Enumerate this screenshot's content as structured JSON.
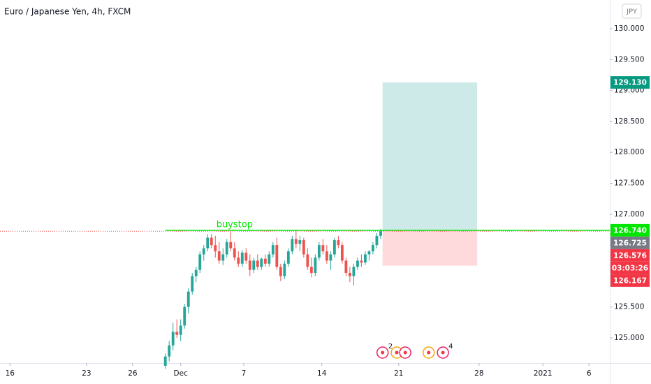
{
  "chart_data": {
    "type": "candlestick",
    "title": "Euro / Japanese Yen, 4h, FXCM",
    "currency_button": "JPY",
    "up_color": "#26a69a",
    "down_color": "#ef5350",
    "x": [
      0,
      1,
      2,
      3,
      4,
      5,
      6,
      7,
      8,
      9,
      10,
      11,
      12,
      13,
      14,
      15,
      16,
      17,
      18,
      19,
      20,
      21,
      22,
      23,
      24,
      25,
      26,
      27,
      28,
      29,
      30,
      31,
      32,
      33,
      34,
      35,
      36,
      37,
      38,
      39,
      40,
      41,
      42,
      43,
      44,
      45,
      46,
      47,
      48,
      49,
      50,
      51,
      52,
      53,
      54,
      55,
      56
    ],
    "open": [
      124.55,
      124.7,
      124.88,
      125.1,
      125.05,
      125.2,
      125.5,
      125.75,
      126.0,
      126.1,
      126.35,
      126.45,
      126.62,
      126.5,
      126.4,
      126.25,
      126.35,
      126.55,
      126.45,
      126.3,
      126.2,
      126.38,
      126.25,
      126.1,
      126.25,
      126.15,
      126.28,
      126.2,
      126.35,
      126.5,
      126.15,
      126.0,
      126.2,
      126.4,
      126.6,
      126.52,
      126.58,
      126.35,
      126.15,
      126.05,
      126.3,
      126.5,
      126.4,
      126.25,
      126.35,
      126.58,
      126.5,
      126.25,
      126.05,
      126.0,
      126.15,
      126.25,
      126.22,
      126.35,
      126.4,
      126.5,
      126.65
    ],
    "high": [
      124.75,
      124.95,
      125.25,
      125.3,
      125.3,
      125.55,
      125.8,
      126.05,
      126.15,
      126.4,
      126.5,
      126.68,
      126.68,
      126.65,
      126.55,
      126.45,
      126.6,
      126.72,
      126.55,
      126.4,
      126.42,
      126.45,
      126.35,
      126.3,
      126.35,
      126.3,
      126.35,
      126.4,
      126.55,
      126.62,
      126.2,
      126.25,
      126.45,
      126.65,
      126.75,
      126.65,
      126.62,
      126.45,
      126.3,
      126.35,
      126.55,
      126.6,
      126.5,
      126.4,
      126.62,
      126.65,
      126.55,
      126.3,
      126.15,
      126.2,
      126.3,
      126.35,
      126.4,
      126.42,
      126.55,
      126.7,
      126.76
    ],
    "low": [
      124.5,
      124.62,
      124.8,
      125.0,
      124.95,
      125.15,
      125.4,
      125.7,
      125.9,
      126.05,
      126.25,
      126.4,
      126.45,
      126.3,
      126.2,
      126.18,
      126.3,
      126.4,
      126.25,
      126.15,
      126.15,
      126.2,
      126.0,
      126.05,
      126.1,
      126.1,
      126.15,
      126.15,
      126.3,
      126.1,
      125.92,
      125.95,
      126.15,
      126.35,
      126.45,
      126.4,
      126.3,
      126.1,
      125.98,
      126.0,
      126.25,
      126.35,
      126.2,
      126.1,
      126.3,
      126.45,
      126.2,
      126.0,
      125.9,
      125.85,
      126.1,
      126.15,
      126.18,
      126.25,
      126.35,
      126.45,
      126.6
    ],
    "close": [
      124.7,
      124.88,
      125.1,
      125.05,
      125.2,
      125.5,
      125.75,
      126.0,
      126.1,
      126.35,
      126.45,
      126.62,
      126.5,
      126.4,
      126.25,
      126.35,
      126.55,
      126.45,
      126.3,
      126.2,
      126.38,
      126.25,
      126.1,
      126.25,
      126.15,
      126.28,
      126.2,
      126.35,
      126.5,
      126.15,
      126.0,
      126.2,
      126.4,
      126.6,
      126.52,
      126.58,
      126.35,
      126.15,
      126.05,
      126.3,
      126.5,
      126.4,
      126.25,
      126.35,
      126.58,
      126.5,
      126.25,
      126.05,
      126.0,
      126.15,
      126.25,
      126.22,
      126.35,
      126.4,
      126.5,
      126.65,
      126.725
    ],
    "xlim": [
      -43,
      115.6
    ],
    "xticks": [
      {
        "value": -40.4,
        "label": "16"
      },
      {
        "value": -20.5,
        "label": "23"
      },
      {
        "value": -8.5,
        "label": "26"
      },
      {
        "value": 4,
        "label": "Dec"
      },
      {
        "value": 20.4,
        "label": "7"
      },
      {
        "value": 40.7,
        "label": "14"
      },
      {
        "value": 60.7,
        "label": "21"
      },
      {
        "value": 81.6,
        "label": "28"
      },
      {
        "value": 98.2,
        "label": "2021"
      },
      {
        "value": 110.2,
        "label": "6"
      }
    ],
    "ylim": [
      124.594,
      130.463
    ],
    "yticks": [
      {
        "value": 125,
        "label": "125.000"
      },
      {
        "value": 125.5,
        "label": "125.500"
      },
      {
        "value": 126,
        "label": "126.000"
      },
      {
        "value": 126.5,
        "label": "126.500"
      },
      {
        "value": 127,
        "label": "127.000"
      },
      {
        "value": 127.5,
        "label": "127.500"
      },
      {
        "value": 128,
        "label": "128.000"
      },
      {
        "value": 128.5,
        "label": "128.500"
      },
      {
        "value": 129,
        "label": "129.000"
      },
      {
        "value": 129.5,
        "label": "129.500"
      },
      {
        "value": 130,
        "label": "130.000"
      }
    ],
    "position": {
      "x_start": 56.5,
      "x_end": 81.1,
      "entry": 126.74,
      "target": 129.13,
      "stop": 126.167,
      "profit_color": "#b2dfdb",
      "loss_color": "#ffcdd2"
    },
    "level": {
      "value": 126.74,
      "x_start": 0,
      "label": "buystop",
      "color": "#00e600"
    },
    "last_price": {
      "value": 126.725,
      "color": "#ef5350"
    },
    "price_labels": [
      {
        "value": 129.13,
        "label": "129.130",
        "color": "#089981"
      },
      {
        "value": 126.74,
        "label": "126.740",
        "color": "#00e600"
      },
      {
        "value": 126.725,
        "label": "126.725",
        "color": "#787b86"
      },
      {
        "value": 126.576,
        "label": "126.576",
        "color": "#f23645"
      },
      {
        "label": "03:03:26",
        "color": "#f23645"
      },
      {
        "value": 126.167,
        "label": "126.167",
        "color": "#f23645"
      }
    ],
    "events": [
      {
        "x": 56.5,
        "label": "2"
      },
      {
        "x": 60.2
      },
      {
        "x": 62.4
      },
      {
        "x": 68.5
      },
      {
        "x": 72.2,
        "label": "4"
      }
    ]
  }
}
